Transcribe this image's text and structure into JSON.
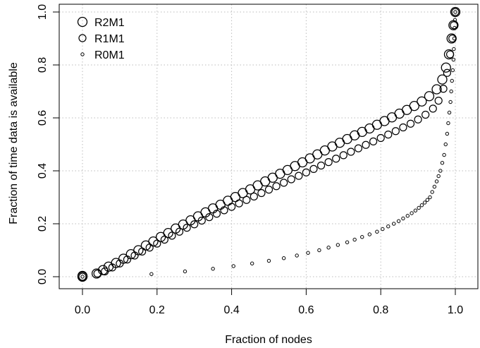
{
  "chart_data": {
    "type": "scatter",
    "xlabel": "Fraction of nodes",
    "ylabel": "Fraction of time data is available",
    "xlim": [
      0,
      1
    ],
    "ylim": [
      0,
      1
    ],
    "xticks": [
      "0.0",
      "0.2",
      "0.4",
      "0.6",
      "0.8",
      "1.0"
    ],
    "yticks": [
      "0.0",
      "0.2",
      "0.4",
      "0.6",
      "0.8",
      "1.0"
    ],
    "grid": true,
    "legend_position": "top-left",
    "series": [
      {
        "name": "R2M1",
        "marker": "large-open-circle",
        "points": [
          [
            0.0,
            0.0
          ],
          [
            0.0,
            0.003
          ],
          [
            0.038,
            0.012
          ],
          [
            0.055,
            0.025
          ],
          [
            0.07,
            0.038
          ],
          [
            0.09,
            0.052
          ],
          [
            0.11,
            0.068
          ],
          [
            0.13,
            0.085
          ],
          [
            0.15,
            0.1
          ],
          [
            0.17,
            0.118
          ],
          [
            0.19,
            0.133
          ],
          [
            0.21,
            0.15
          ],
          [
            0.23,
            0.165
          ],
          [
            0.25,
            0.182
          ],
          [
            0.27,
            0.197
          ],
          [
            0.29,
            0.213
          ],
          [
            0.31,
            0.228
          ],
          [
            0.33,
            0.243
          ],
          [
            0.35,
            0.258
          ],
          [
            0.37,
            0.272
          ],
          [
            0.39,
            0.287
          ],
          [
            0.41,
            0.301
          ],
          [
            0.43,
            0.316
          ],
          [
            0.45,
            0.33
          ],
          [
            0.47,
            0.345
          ],
          [
            0.49,
            0.36
          ],
          [
            0.51,
            0.374
          ],
          [
            0.53,
            0.389
          ],
          [
            0.55,
            0.403
          ],
          [
            0.57,
            0.418
          ],
          [
            0.59,
            0.432
          ],
          [
            0.61,
            0.447
          ],
          [
            0.63,
            0.462
          ],
          [
            0.65,
            0.477
          ],
          [
            0.67,
            0.492
          ],
          [
            0.69,
            0.506
          ],
          [
            0.71,
            0.52
          ],
          [
            0.73,
            0.534
          ],
          [
            0.75,
            0.547
          ],
          [
            0.77,
            0.56
          ],
          [
            0.79,
            0.574
          ],
          [
            0.81,
            0.588
          ],
          [
            0.83,
            0.602
          ],
          [
            0.85,
            0.616
          ],
          [
            0.87,
            0.63
          ],
          [
            0.89,
            0.645
          ],
          [
            0.91,
            0.662
          ],
          [
            0.93,
            0.682
          ],
          [
            0.95,
            0.708
          ],
          [
            0.965,
            0.745
          ],
          [
            0.975,
            0.79
          ],
          [
            0.983,
            0.84
          ],
          [
            0.99,
            0.9
          ],
          [
            0.995,
            0.95
          ],
          [
            1.0,
            1.0
          ]
        ]
      },
      {
        "name": "R1M1",
        "marker": "medium-open-circle",
        "points": [
          [
            0.0,
            0.0
          ],
          [
            0.04,
            0.012
          ],
          [
            0.06,
            0.02
          ],
          [
            0.08,
            0.035
          ],
          [
            0.1,
            0.05
          ],
          [
            0.12,
            0.065
          ],
          [
            0.14,
            0.08
          ],
          [
            0.16,
            0.095
          ],
          [
            0.18,
            0.11
          ],
          [
            0.2,
            0.125
          ],
          [
            0.22,
            0.14
          ],
          [
            0.24,
            0.155
          ],
          [
            0.26,
            0.17
          ],
          [
            0.28,
            0.185
          ],
          [
            0.3,
            0.198
          ],
          [
            0.32,
            0.212
          ],
          [
            0.34,
            0.225
          ],
          [
            0.36,
            0.238
          ],
          [
            0.38,
            0.251
          ],
          [
            0.4,
            0.264
          ],
          [
            0.42,
            0.277
          ],
          [
            0.44,
            0.29
          ],
          [
            0.46,
            0.303
          ],
          [
            0.48,
            0.316
          ],
          [
            0.5,
            0.329
          ],
          [
            0.52,
            0.342
          ],
          [
            0.54,
            0.355
          ],
          [
            0.56,
            0.368
          ],
          [
            0.58,
            0.381
          ],
          [
            0.6,
            0.394
          ],
          [
            0.62,
            0.407
          ],
          [
            0.64,
            0.42
          ],
          [
            0.66,
            0.433
          ],
          [
            0.68,
            0.446
          ],
          [
            0.7,
            0.459
          ],
          [
            0.72,
            0.472
          ],
          [
            0.74,
            0.485
          ],
          [
            0.76,
            0.498
          ],
          [
            0.78,
            0.511
          ],
          [
            0.8,
            0.524
          ],
          [
            0.82,
            0.537
          ],
          [
            0.84,
            0.55
          ],
          [
            0.86,
            0.564
          ],
          [
            0.88,
            0.578
          ],
          [
            0.9,
            0.594
          ],
          [
            0.92,
            0.612
          ],
          [
            0.94,
            0.635
          ],
          [
            0.955,
            0.665
          ],
          [
            0.968,
            0.71
          ],
          [
            0.978,
            0.77
          ],
          [
            0.986,
            0.84
          ],
          [
            0.992,
            0.9
          ],
          [
            0.996,
            0.95
          ],
          [
            1.0,
            1.0
          ]
        ]
      },
      {
        "name": "R0M1",
        "marker": "small-open-circle",
        "points": [
          [
            0.0,
            0.0
          ],
          [
            0.185,
            0.01
          ],
          [
            0.275,
            0.02
          ],
          [
            0.35,
            0.03
          ],
          [
            0.405,
            0.04
          ],
          [
            0.455,
            0.05
          ],
          [
            0.5,
            0.06
          ],
          [
            0.54,
            0.07
          ],
          [
            0.575,
            0.08
          ],
          [
            0.605,
            0.09
          ],
          [
            0.635,
            0.1
          ],
          [
            0.66,
            0.11
          ],
          [
            0.685,
            0.12
          ],
          [
            0.71,
            0.13
          ],
          [
            0.73,
            0.14
          ],
          [
            0.75,
            0.15
          ],
          [
            0.77,
            0.16
          ],
          [
            0.79,
            0.17
          ],
          [
            0.805,
            0.18
          ],
          [
            0.82,
            0.19
          ],
          [
            0.835,
            0.2
          ],
          [
            0.848,
            0.21
          ],
          [
            0.86,
            0.22
          ],
          [
            0.872,
            0.23
          ],
          [
            0.883,
            0.24
          ],
          [
            0.893,
            0.25
          ],
          [
            0.902,
            0.26
          ],
          [
            0.91,
            0.27
          ],
          [
            0.918,
            0.28
          ],
          [
            0.925,
            0.29
          ],
          [
            0.932,
            0.3
          ],
          [
            0.938,
            0.32
          ],
          [
            0.944,
            0.34
          ],
          [
            0.95,
            0.36
          ],
          [
            0.955,
            0.38
          ],
          [
            0.96,
            0.4
          ],
          [
            0.965,
            0.43
          ],
          [
            0.97,
            0.46
          ],
          [
            0.974,
            0.5
          ],
          [
            0.978,
            0.54
          ],
          [
            0.981,
            0.58
          ],
          [
            0.984,
            0.62
          ],
          [
            0.987,
            0.66
          ],
          [
            0.989,
            0.7
          ],
          [
            0.991,
            0.74
          ],
          [
            0.993,
            0.78
          ],
          [
            0.995,
            0.82
          ],
          [
            0.996,
            0.86
          ],
          [
            0.997,
            0.9
          ],
          [
            0.998,
            0.94
          ],
          [
            0.999,
            0.97
          ],
          [
            1.0,
            1.0
          ]
        ]
      }
    ]
  }
}
